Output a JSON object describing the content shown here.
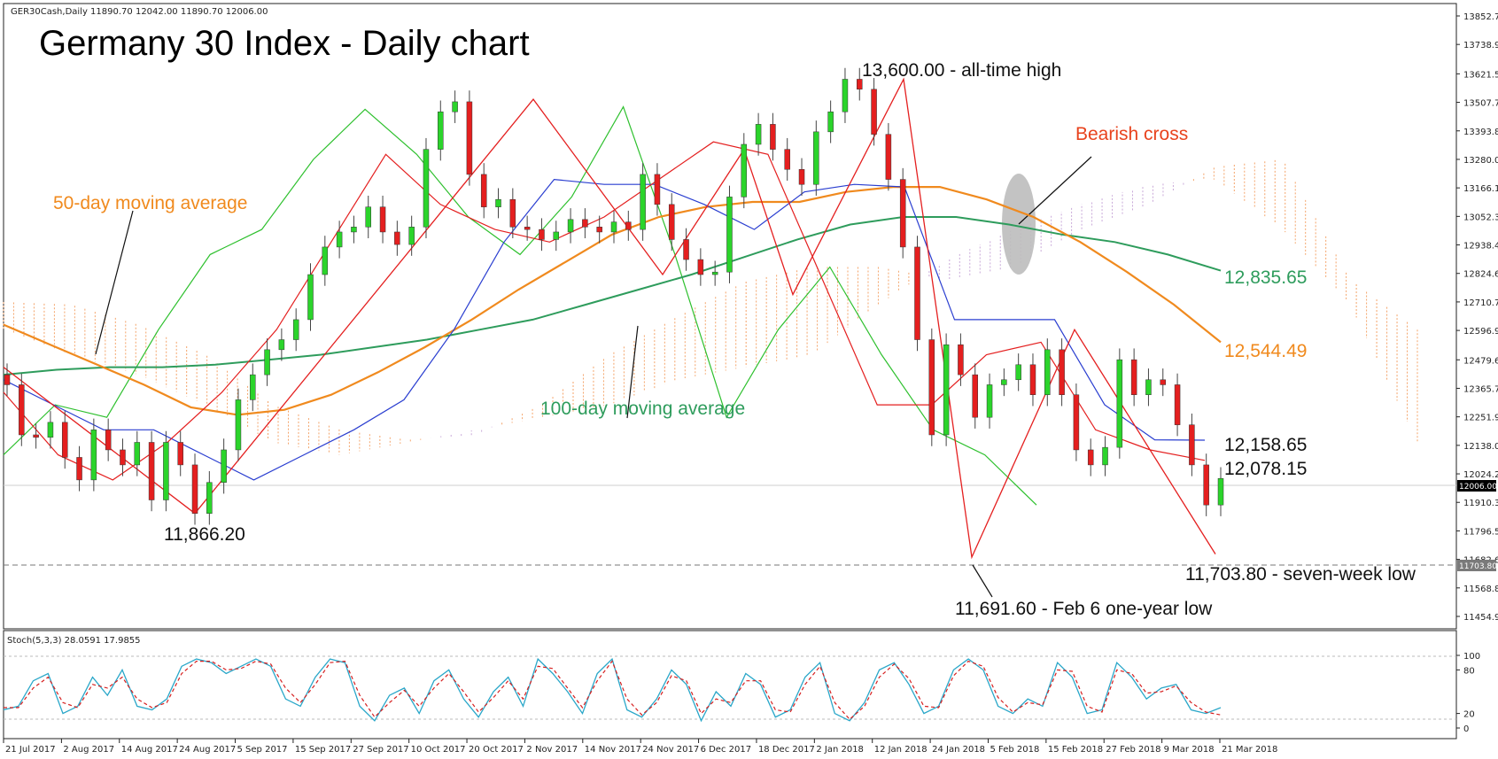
{
  "symbol_header": "GER30Cash,Daily  11890.70 12042.00 11890.70 12006.00",
  "chart_data": {
    "type": "line",
    "title": "Germany 30 Index - Daily chart",
    "main_panel": {
      "y_ticks": [
        "13852.75",
        "13738.95",
        "13621.55",
        "13507.70",
        "13393.85",
        "13280.00",
        "13166.15",
        "13052.30",
        "12938.45",
        "12824.60",
        "12710.75",
        "12596.90",
        "12479.60",
        "12365.75",
        "12251.90",
        "12138.05",
        "12024.20",
        "11910.35",
        "11796.50",
        "11682.65",
        "11568.80",
        "11454.95"
      ],
      "ylim": [
        11454.95,
        13852.75
      ],
      "price_label": "12006.00",
      "low_label": "11703.80",
      "series": [
        {
          "name": "Price (candles)",
          "color": "#e41f1f",
          "values": [
            12380,
            12180,
            12170,
            12230,
            12090,
            12000,
            12200,
            12120,
            12060,
            12150,
            11920,
            12150,
            12060,
            11866,
            11990,
            12120,
            12320,
            12420,
            12520,
            12560,
            12640,
            12820,
            12930,
            12990,
            13010,
            13090,
            12990,
            12940,
            13010,
            13320,
            13470,
            13510,
            13220,
            13090,
            13120,
            13010,
            13000,
            12960,
            12990,
            13040,
            13010,
            12990,
            13030,
            13000,
            13220,
            13100,
            12960,
            12880,
            12820,
            12830,
            13130,
            13340,
            13420,
            13320,
            13240,
            13180,
            13390,
            13470,
            13600,
            13560,
            13380,
            13200,
            12930,
            12560,
            12180,
            12540,
            12420,
            12250,
            12380,
            12400,
            12460,
            12340,
            12520,
            12340,
            12120,
            12060,
            12130,
            12480,
            12340,
            12400,
            12380,
            12220,
            12060,
            11900,
            12006
          ]
        },
        {
          "name": "Zigzag",
          "color": "#e41f1f",
          "values": [
            12450,
            11866.2,
            13520,
            12820,
            13320,
            12740,
            13600,
            11691.6,
            12600,
            11703.8
          ]
        },
        {
          "name": "50-day moving average",
          "color": "#f08a1e",
          "values": [
            12620,
            12540,
            12460,
            12380,
            12290,
            12260,
            12280,
            12340,
            12430,
            12530,
            12640,
            12760,
            12870,
            12980,
            13050,
            13090,
            13110,
            13110,
            13150,
            13170,
            13170,
            13120,
            13050,
            12950,
            12830,
            12700,
            12550
          ]
        },
        {
          "name": "100-day moving average",
          "color": "#2e9c5c",
          "values": [
            12420,
            12440,
            12450,
            12450,
            12460,
            12480,
            12500,
            12530,
            12560,
            12600,
            12640,
            12700,
            12760,
            12820,
            12890,
            12960,
            13020,
            13050,
            13050,
            13020,
            12980,
            12950,
            12900,
            12835.65
          ]
        },
        {
          "name": "Kijun-sen",
          "color": "#2a3ed0",
          "values": [
            12400,
            12300,
            12200,
            12200,
            12100,
            12000,
            12100,
            12200,
            12320,
            12600,
            12950,
            13200,
            13180,
            13180,
            13100,
            13000,
            13150,
            13180,
            13170,
            12640,
            12640,
            12640,
            12300,
            12160,
            12158.65
          ]
        },
        {
          "name": "Tenkan-sen",
          "color": "#e41f1f",
          "values": [
            12350,
            12100,
            12000,
            12150,
            12350,
            12600,
            12950,
            13300,
            13100,
            13000,
            12950,
            13050,
            13200,
            13350,
            13300,
            12800,
            12300,
            12300,
            12500,
            12550,
            12200,
            12120,
            12078.15
          ]
        },
        {
          "name": "Chikou span",
          "color": "#2ec02e",
          "values": [
            12100,
            12300,
            12250,
            12600,
            12900,
            13000,
            13280,
            13480,
            13300,
            13050,
            12900,
            13130,
            13490,
            12900,
            12250,
            12600,
            12850,
            12500,
            12200,
            12100,
            11900
          ]
        }
      ],
      "annotations": [
        {
          "text": "Germany 30 Index - Daily chart",
          "color": "#000000"
        },
        {
          "text": "50-day moving average",
          "color": "#f08a1e"
        },
        {
          "text": "100-day moving average",
          "color": "#2e9c5c"
        },
        {
          "text": "13,600.00 - all-time high",
          "color": "#111111"
        },
        {
          "text": "Bearish cross",
          "color": "#e8431e"
        },
        {
          "text": "12,835.65",
          "color": "#2e9c5c"
        },
        {
          "text": "12,544.49",
          "color": "#f08a1e"
        },
        {
          "text": "12,158.65",
          "color": "#111111"
        },
        {
          "text": "12,078.15",
          "color": "#111111"
        },
        {
          "text": "11,866.20",
          "color": "#111111"
        },
        {
          "text": "11,703.80 - seven-week low",
          "color": "#111111"
        },
        {
          "text": "11,691.60 - Feb 6 one-year low",
          "color": "#111111"
        }
      ]
    },
    "stoch_panel": {
      "header": "Stoch(5,3,3) 28.0591 17.9855",
      "y_ticks": [
        "100",
        "80",
        "20",
        "0"
      ],
      "ylim": [
        0,
        100
      ],
      "series": [
        {
          "name": "%K",
          "color": "#2aa7c9",
          "values": [
            25,
            30,
            65,
            75,
            20,
            30,
            70,
            45,
            80,
            30,
            25,
            40,
            85,
            95,
            90,
            75,
            85,
            95,
            85,
            40,
            30,
            70,
            95,
            90,
            30,
            10,
            45,
            55,
            20,
            65,
            80,
            40,
            15,
            50,
            70,
            30,
            95,
            75,
            50,
            20,
            75,
            95,
            25,
            15,
            40,
            80,
            60,
            10,
            50,
            30,
            75,
            60,
            15,
            25,
            70,
            90,
            20,
            10,
            35,
            80,
            90,
            60,
            20,
            30,
            80,
            95,
            80,
            30,
            20,
            40,
            30,
            90,
            70,
            20,
            25,
            90,
            70,
            40,
            55,
            60,
            25,
            20,
            28
          ]
        },
        {
          "name": "%D",
          "color": "#d61f1f",
          "values": [
            28,
            28,
            55,
            70,
            35,
            28,
            60,
            55,
            70,
            40,
            28,
            35,
            75,
            92,
            92,
            80,
            82,
            92,
            88,
            55,
            35,
            60,
            90,
            92,
            45,
            15,
            35,
            52,
            30,
            55,
            75,
            50,
            22,
            42,
            65,
            40,
            85,
            82,
            55,
            28,
            65,
            92,
            40,
            18,
            35,
            72,
            65,
            20,
            40,
            35,
            65,
            65,
            25,
            22,
            60,
            85,
            35,
            12,
            30,
            70,
            88,
            68,
            30,
            28,
            72,
            92,
            85,
            42,
            22,
            35,
            32,
            80,
            78,
            30,
            22,
            80,
            75,
            48,
            50,
            58,
            35,
            22,
            18
          ]
        }
      ]
    },
    "x_ticks": [
      "21 Jul 2017",
      "2 Aug 2017",
      "14 Aug 2017",
      "24 Aug 2017",
      "5 Sep 2017",
      "15 Sep 2017",
      "27 Sep 2017",
      "10 Oct 2017",
      "20 Oct 2017",
      "2 Nov 2017",
      "14 Nov 2017",
      "24 Nov 2017",
      "6 Dec 2017",
      "18 Dec 2017",
      "2 Jan 2018",
      "12 Jan 2018",
      "24 Jan 2018",
      "5 Feb 2018",
      "15 Feb 2018",
      "27 Feb 2018",
      "9 Mar 2018",
      "21 Mar 2018"
    ]
  }
}
